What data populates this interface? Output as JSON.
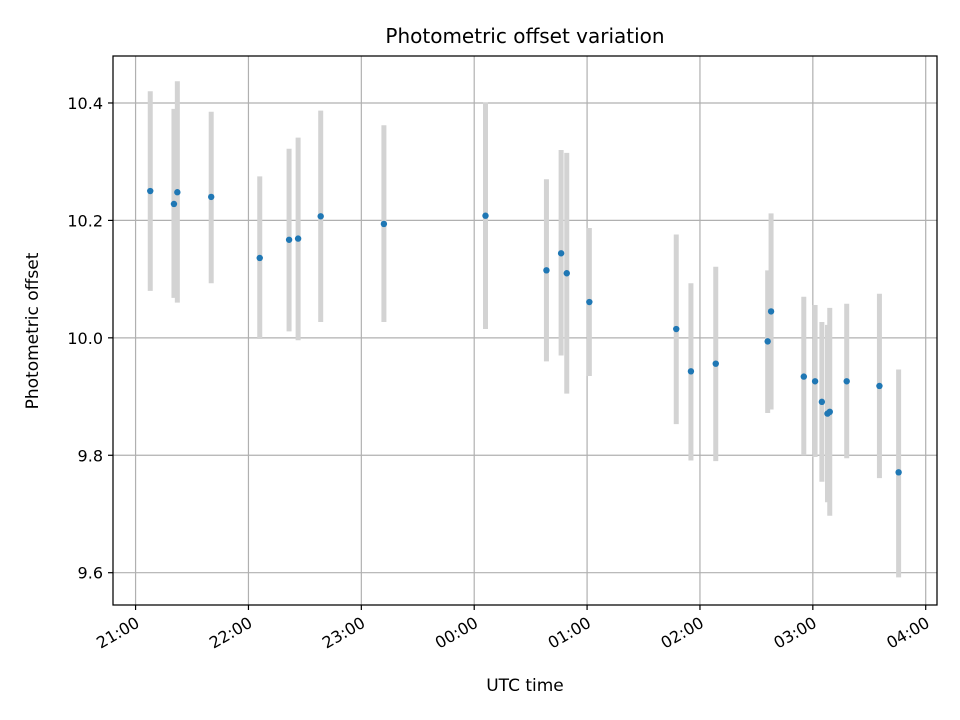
{
  "chart_data": {
    "type": "scatter",
    "title": "Photometric offset variation",
    "xlabel": "UTC time",
    "ylabel": "Photometric offset",
    "x_unit": "hours since 21:00 UTC",
    "xlim": [
      -0.2,
      7.1
    ],
    "ylim": [
      9.545,
      10.48
    ],
    "x_ticks": [
      {
        "value": 0,
        "label": "21:00"
      },
      {
        "value": 1,
        "label": "22:00"
      },
      {
        "value": 2,
        "label": "23:00"
      },
      {
        "value": 3,
        "label": "00:00"
      },
      {
        "value": 4,
        "label": "01:00"
      },
      {
        "value": 5,
        "label": "02:00"
      },
      {
        "value": 6,
        "label": "03:00"
      },
      {
        "value": 7,
        "label": "04:00"
      }
    ],
    "y_ticks": [
      {
        "value": 9.6,
        "label": "9.6"
      },
      {
        "value": 9.8,
        "label": "9.8"
      },
      {
        "value": 10.0,
        "label": "10.0"
      },
      {
        "value": 10.2,
        "label": "10.2"
      },
      {
        "value": 10.4,
        "label": "10.4"
      }
    ],
    "grid": true,
    "marker_color": "#1f77b4",
    "errorbar_color": "#d3d3d3",
    "points": [
      {
        "x": 0.13,
        "y": 10.25,
        "ylow": 10.08,
        "yhigh": 10.42
      },
      {
        "x": 0.34,
        "y": 10.228,
        "ylow": 10.068,
        "yhigh": 10.39
      },
      {
        "x": 0.37,
        "y": 10.248,
        "ylow": 10.06,
        "yhigh": 10.437
      },
      {
        "x": 0.67,
        "y": 10.24,
        "ylow": 10.093,
        "yhigh": 10.385
      },
      {
        "x": 1.1,
        "y": 10.136,
        "ylow": 9.998,
        "yhigh": 10.275
      },
      {
        "x": 1.36,
        "y": 10.167,
        "ylow": 10.011,
        "yhigh": 10.322
      },
      {
        "x": 1.44,
        "y": 10.169,
        "ylow": 9.996,
        "yhigh": 10.341
      },
      {
        "x": 1.64,
        "y": 10.207,
        "ylow": 10.027,
        "yhigh": 10.387
      },
      {
        "x": 2.2,
        "y": 10.194,
        "ylow": 10.027,
        "yhigh": 10.362
      },
      {
        "x": 3.1,
        "y": 10.208,
        "ylow": 10.015,
        "yhigh": 10.401
      },
      {
        "x": 3.64,
        "y": 10.115,
        "ylow": 9.96,
        "yhigh": 10.27
      },
      {
        "x": 3.77,
        "y": 10.144,
        "ylow": 9.97,
        "yhigh": 10.32
      },
      {
        "x": 3.82,
        "y": 10.11,
        "ylow": 9.905,
        "yhigh": 10.315
      },
      {
        "x": 4.02,
        "y": 10.061,
        "ylow": 9.935,
        "yhigh": 10.187
      },
      {
        "x": 4.79,
        "y": 10.015,
        "ylow": 9.853,
        "yhigh": 10.176
      },
      {
        "x": 4.92,
        "y": 9.943,
        "ylow": 9.791,
        "yhigh": 10.093
      },
      {
        "x": 5.14,
        "y": 9.956,
        "ylow": 9.79,
        "yhigh": 10.121
      },
      {
        "x": 5.6,
        "y": 9.994,
        "ylow": 9.872,
        "yhigh": 10.115
      },
      {
        "x": 5.63,
        "y": 10.045,
        "ylow": 9.878,
        "yhigh": 10.212
      },
      {
        "x": 5.92,
        "y": 9.934,
        "ylow": 9.8,
        "yhigh": 10.07
      },
      {
        "x": 6.02,
        "y": 9.926,
        "ylow": 9.797,
        "yhigh": 10.056
      },
      {
        "x": 6.08,
        "y": 9.891,
        "ylow": 9.755,
        "yhigh": 10.027
      },
      {
        "x": 6.13,
        "y": 9.871,
        "ylow": 9.72,
        "yhigh": 10.022
      },
      {
        "x": 6.15,
        "y": 9.874,
        "ylow": 9.697,
        "yhigh": 10.051
      },
      {
        "x": 6.3,
        "y": 9.926,
        "ylow": 9.795,
        "yhigh": 10.058
      },
      {
        "x": 6.59,
        "y": 9.918,
        "ylow": 9.761,
        "yhigh": 10.075
      },
      {
        "x": 6.76,
        "y": 9.771,
        "ylow": 9.592,
        "yhigh": 9.946
      }
    ]
  }
}
